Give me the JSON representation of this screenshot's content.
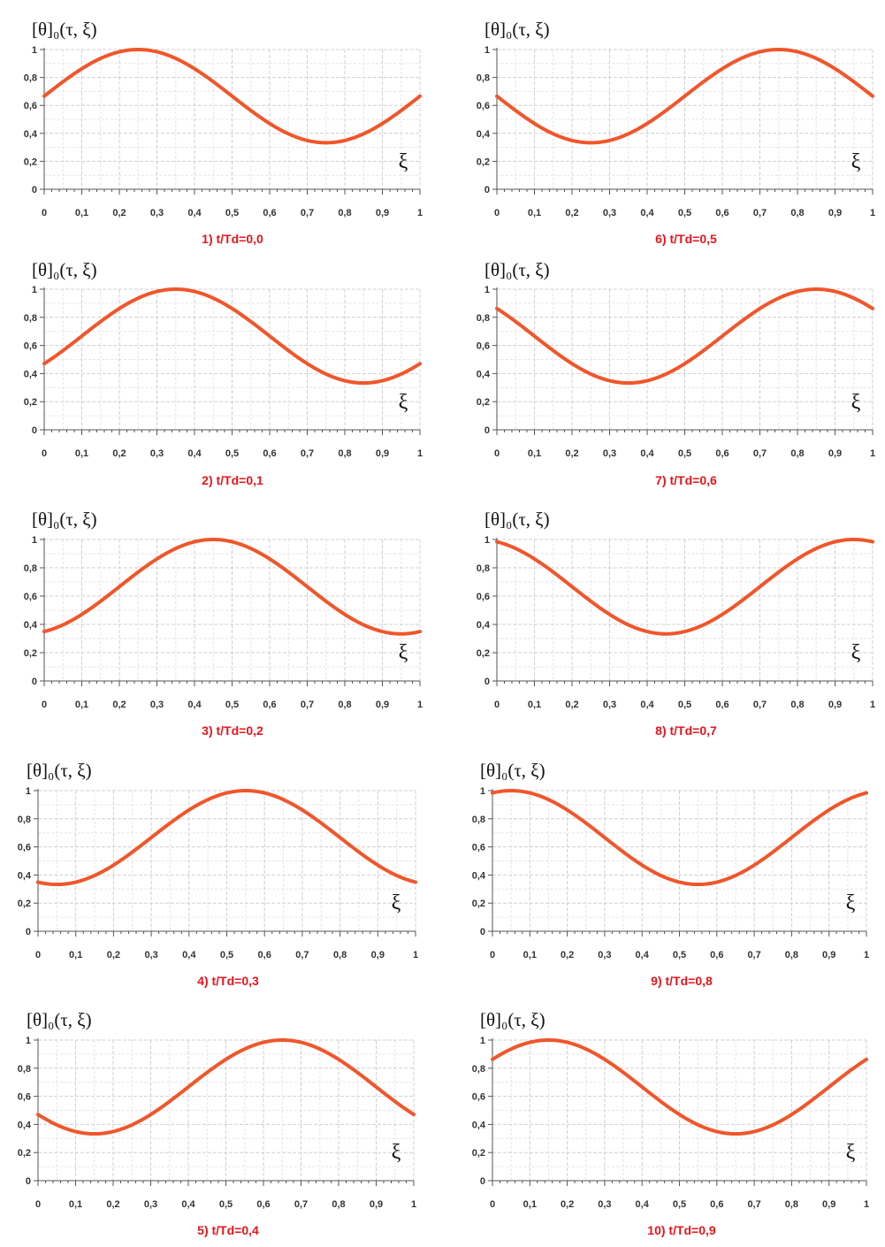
{
  "y_label": "[θ]₀(τ, ξ)",
  "x_symbol": "ξ",
  "colors": {
    "curve": "#f0562a",
    "caption": "#e8141b",
    "grid": "#d0d0d0",
    "axis": "#555555"
  },
  "chart_data": [
    {
      "type": "line",
      "caption_number": "1)",
      "caption_text": "t/Td=0,0",
      "xlim": [
        0,
        1
      ],
      "ylim": [
        0,
        1
      ],
      "x_ticks": [
        "0",
        "0,1",
        "0,2",
        "0,3",
        "0,4",
        "0,5",
        "0,6",
        "0,7",
        "0,8",
        "0,9",
        "1"
      ],
      "y_ticks": [
        "0",
        "0,2",
        "0,4",
        "0,6",
        "0,8",
        "1"
      ],
      "peak_x": 0.25,
      "y_max": 1.0,
      "y_min": 0.333
    },
    {
      "type": "line",
      "caption_number": "2)",
      "caption_text": "t/Td=0,1",
      "xlim": [
        0,
        1
      ],
      "ylim": [
        0,
        1
      ],
      "x_ticks": [
        "0",
        "0,1",
        "0,2",
        "0,3",
        "0,4",
        "0,5",
        "0,6",
        "0,7",
        "0,8",
        "0,9",
        "1"
      ],
      "y_ticks": [
        "0",
        "0,2",
        "0,4",
        "0,6",
        "0,8",
        "1"
      ],
      "peak_x": 0.35,
      "y_max": 1.0,
      "y_min": 0.333
    },
    {
      "type": "line",
      "caption_number": "3)",
      "caption_text": "t/Td=0,2",
      "xlim": [
        0,
        1
      ],
      "ylim": [
        0,
        1
      ],
      "x_ticks": [
        "0",
        "0,1",
        "0,2",
        "0,3",
        "0,4",
        "0,5",
        "0,6",
        "0,7",
        "0,8",
        "0,9",
        "1"
      ],
      "y_ticks": [
        "0",
        "0,2",
        "0,4",
        "0,6",
        "0,8",
        "1"
      ],
      "peak_x": 0.45,
      "y_max": 1.0,
      "y_min": 0.333
    },
    {
      "type": "line",
      "caption_number": "4)",
      "caption_text": "t/Td=0,3",
      "xlim": [
        0,
        1
      ],
      "ylim": [
        0,
        1
      ],
      "x_ticks": [
        "0",
        "0,1",
        "0,2",
        "0,3",
        "0,4",
        "0,5",
        "0,6",
        "0,7",
        "0,8",
        "0,9",
        "1"
      ],
      "y_ticks": [
        "0",
        "0,2",
        "0,4",
        "0,6",
        "0,8",
        "1"
      ],
      "peak_x": 0.55,
      "y_max": 1.0,
      "y_min": 0.333
    },
    {
      "type": "line",
      "caption_number": "5)",
      "caption_text": "t/Td=0,4",
      "xlim": [
        0,
        1
      ],
      "ylim": [
        0,
        1
      ],
      "x_ticks": [
        "0",
        "0,1",
        "0,2",
        "0,3",
        "0,4",
        "0,5",
        "0,6",
        "0,7",
        "0,8",
        "0,9",
        "1"
      ],
      "y_ticks": [
        "0",
        "0,2",
        "0,4",
        "0,6",
        "0,8",
        "1"
      ],
      "peak_x": 0.65,
      "y_max": 1.0,
      "y_min": 0.333
    },
    {
      "type": "line",
      "caption_number": "6)",
      "caption_text": "t/Td=0,5",
      "xlim": [
        0,
        1
      ],
      "ylim": [
        0,
        1
      ],
      "x_ticks": [
        "0",
        "0,1",
        "0,2",
        "0,3",
        "0,4",
        "0,5",
        "0,6",
        "0,7",
        "0,8",
        "0,9",
        "1"
      ],
      "y_ticks": [
        "0",
        "0,2",
        "0,4",
        "0,6",
        "0,8",
        "1"
      ],
      "peak_x": 0.75,
      "y_max": 1.0,
      "y_min": 0.333
    },
    {
      "type": "line",
      "caption_number": "7)",
      "caption_text": "t/Td=0,6",
      "xlim": [
        0,
        1
      ],
      "ylim": [
        0,
        1
      ],
      "x_ticks": [
        "0",
        "0,1",
        "0,2",
        "0,3",
        "0,4",
        "0,5",
        "0,6",
        "0,7",
        "0,8",
        "0,9",
        "1"
      ],
      "y_ticks": [
        "0",
        "0,2",
        "0,4",
        "0,6",
        "0,8",
        "1"
      ],
      "peak_x": 0.85,
      "y_max": 1.0,
      "y_min": 0.333
    },
    {
      "type": "line",
      "caption_number": "8)",
      "caption_text": "t/Td=0,7",
      "xlim": [
        0,
        1
      ],
      "ylim": [
        0,
        1
      ],
      "x_ticks": [
        "0",
        "0,1",
        "0,2",
        "0,3",
        "0,4",
        "0,5",
        "0,6",
        "0,7",
        "0,8",
        "0,9",
        "1"
      ],
      "y_ticks": [
        "0",
        "0,2",
        "0,4",
        "0,6",
        "0,8",
        "1"
      ],
      "peak_x": 0.95,
      "y_max": 1.0,
      "y_min": 0.333
    },
    {
      "type": "line",
      "caption_number": "9)",
      "caption_text": "t/Td=0,8",
      "xlim": [
        0,
        1
      ],
      "ylim": [
        0,
        1
      ],
      "x_ticks": [
        "0",
        "0,1",
        "0,2",
        "0,3",
        "0,4",
        "0,5",
        "0,6",
        "0,7",
        "0,8",
        "0,9",
        "1"
      ],
      "y_ticks": [
        "0",
        "0,2",
        "0,4",
        "0,6",
        "0,8",
        "1"
      ],
      "peak_x": 0.05,
      "y_max": 1.0,
      "y_min": 0.333
    },
    {
      "type": "line",
      "caption_number": "10)",
      "caption_text": "t/Td=0,9",
      "xlim": [
        0,
        1
      ],
      "ylim": [
        0,
        1
      ],
      "x_ticks": [
        "0",
        "0,1",
        "0,2",
        "0,3",
        "0,4",
        "0,5",
        "0,6",
        "0,7",
        "0,8",
        "0,9",
        "1"
      ],
      "y_ticks": [
        "0",
        "0,2",
        "0,4",
        "0,6",
        "0,8",
        "1"
      ],
      "peak_x": 0.15,
      "y_max": 1.0,
      "y_min": 0.333
    }
  ]
}
